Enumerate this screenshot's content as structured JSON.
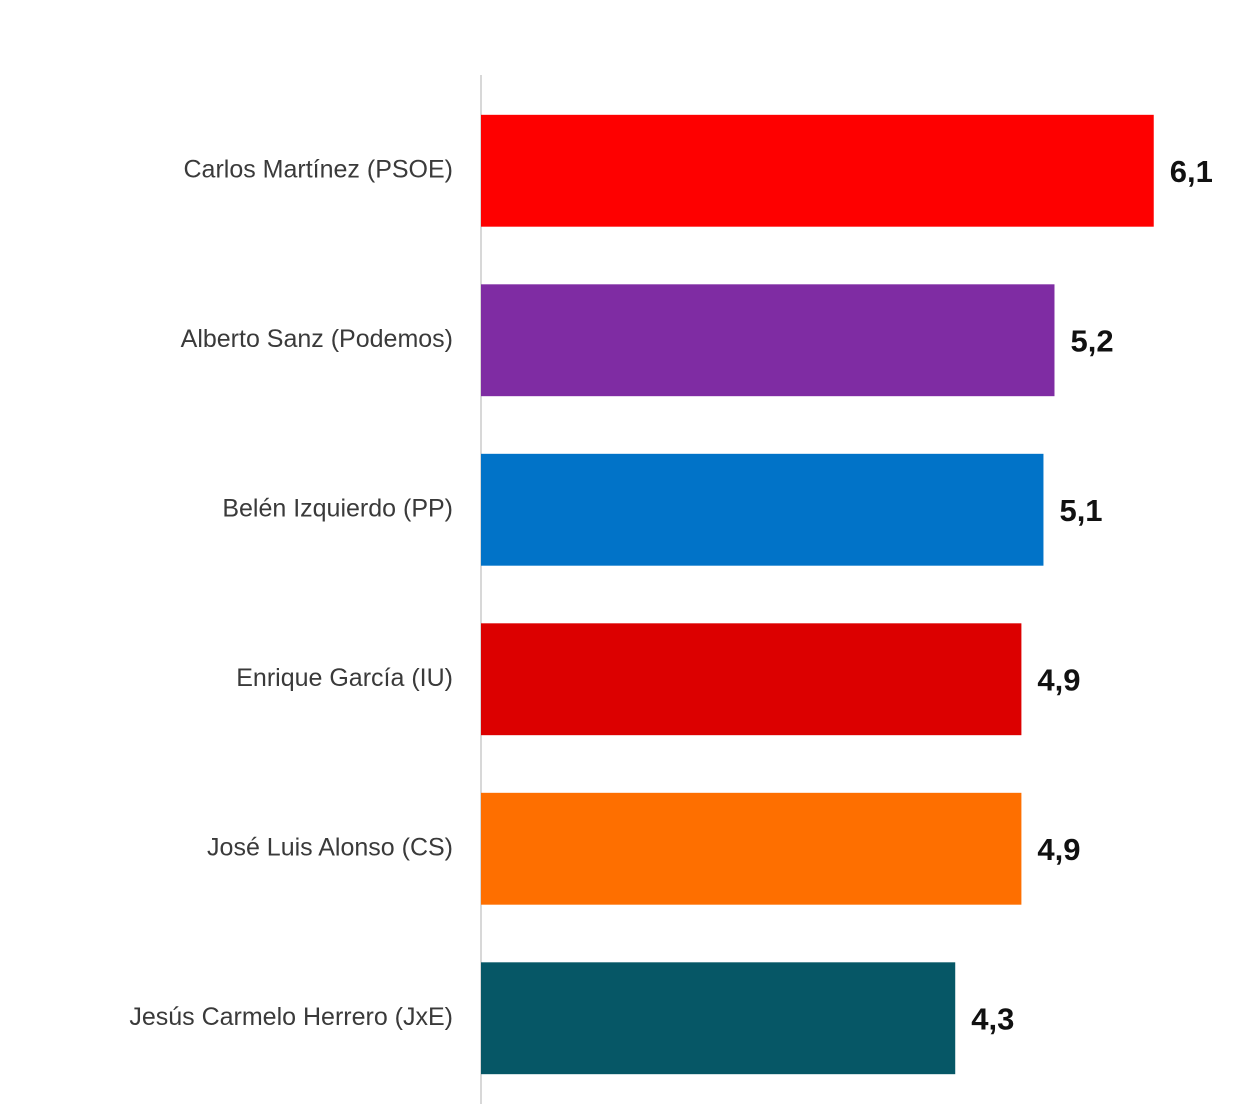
{
  "chart_data": {
    "type": "barh",
    "categories": [
      "Carlos Martínez (PSOE)",
      "Alberto Sanz (Podemos)",
      "Belén Izquierdo (PP)",
      "Enrique García (IU)",
      "José Luis Alonso (CS)",
      "Jesús Carmelo Herrero (JxE)"
    ],
    "values": [
      6.1,
      5.2,
      5.1,
      4.9,
      4.9,
      4.3
    ],
    "value_labels": [
      "6,1",
      "5,2",
      "5,1",
      "4,9",
      "4,9",
      "4,3"
    ],
    "colors": [
      "#fe0000",
      "#7f2ca3",
      "#0173c8",
      "#dc0000",
      "#fe6f00",
      "#065766"
    ],
    "xlim": [
      0,
      7
    ]
  }
}
